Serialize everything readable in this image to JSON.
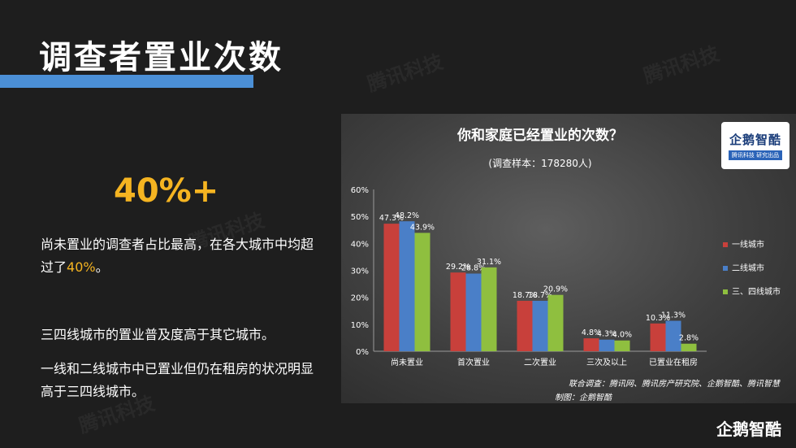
{
  "slide": {
    "title": "调查者置业次数",
    "highlight": "40%+",
    "para1_main": "尚未置业的调查者占比最高，在各大城市中均超过了",
    "para1_accent": "40%",
    "para1_end": "。",
    "para2": "三四线城市的置业普及度高于其它城市。",
    "para3": "一线和二线城市中已置业但仍在租房的状况明显高于三四线城市。",
    "watermark": "腾讯科技",
    "brand": "企鹅智酷"
  },
  "logo": {
    "main": "企鹅智酷",
    "sub": "腾讯科技 研究出品"
  },
  "source": {
    "line1": "联合调查：腾讯网、腾讯房产研究院、企鹅智酷、腾讯智慧",
    "line2": "制图：企鹅智酷"
  },
  "colors": {
    "accent": "#f5b421",
    "title_bar": "#4b8fd6",
    "series1": "#c8403b",
    "series2": "#4a7fc8",
    "series3": "#8fbf3f"
  },
  "chart_data": {
    "type": "bar",
    "title": "你和家庭已经置业的次数？",
    "subtitle": "(调查样本：178280人)",
    "categories": [
      "尚未置业",
      "首次置业",
      "二次置业",
      "三次及以上",
      "已置业在租房"
    ],
    "series": [
      {
        "name": "一线城市",
        "values": [
          47.3,
          29.2,
          18.7,
          4.8,
          10.3
        ],
        "labels": [
          "47.3%",
          "29.2%",
          "18.7%",
          "4.8%",
          "10.3%"
        ]
      },
      {
        "name": "二线城市",
        "values": [
          48.2,
          28.8,
          18.7,
          4.3,
          11.3
        ],
        "labels": [
          "48.2%",
          "28.8%",
          "18.7%",
          "4.3%",
          "11.3%"
        ]
      },
      {
        "name": "三、四线城市",
        "values": [
          43.9,
          31.1,
          20.9,
          4.0,
          2.8
        ],
        "labels": [
          "43.9%",
          "31.1%",
          "20.9%",
          "4.0%",
          "2.8%"
        ]
      }
    ],
    "yticks": [
      0,
      10,
      20,
      30,
      40,
      50,
      60
    ],
    "ytick_labels": [
      "0%",
      "10%",
      "20%",
      "30%",
      "40%",
      "50%",
      "60%"
    ],
    "ylim": [
      0,
      60
    ],
    "legend": "right",
    "grid": false
  }
}
